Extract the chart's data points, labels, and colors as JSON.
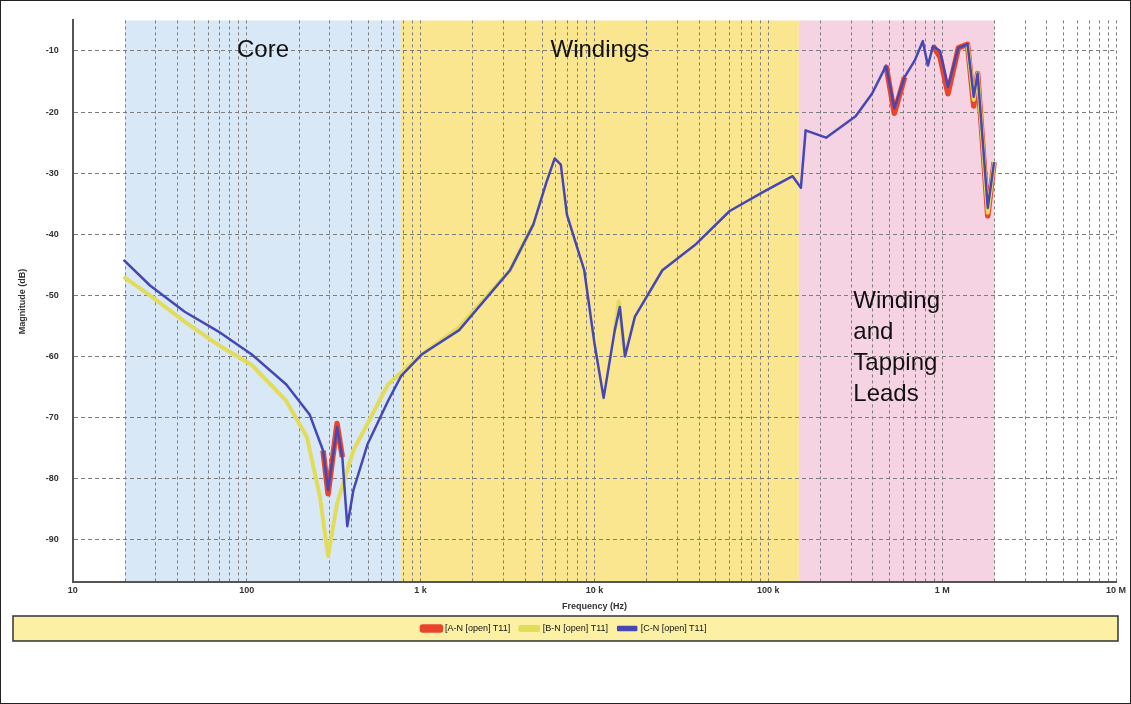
{
  "chart_data": {
    "type": "line",
    "xlabel": "Frequency (Hz)",
    "ylabel": "Magnitude (dB)",
    "log": "x",
    "grid": true,
    "legend": "bottom",
    "xlim": [
      10,
      10000000
    ],
    "ylim": [
      -97,
      -5
    ],
    "xticks": [
      10,
      {
        "value": 20,
        "label": null
      },
      {
        "value": 30,
        "label": null
      },
      {
        "value": 40,
        "label": null
      },
      {
        "value": 50,
        "label": null
      },
      {
        "value": 60,
        "label": null
      },
      {
        "value": 70,
        "label": null
      },
      {
        "value": 80,
        "label": null
      },
      {
        "value": 90,
        "label": null
      },
      100,
      {
        "value": 200,
        "label": null
      },
      {
        "value": 300,
        "label": null
      },
      {
        "value": 400,
        "label": null
      },
      {
        "value": 500,
        "label": null
      },
      {
        "value": 600,
        "label": null
      },
      {
        "value": 700,
        "label": null
      },
      {
        "value": 800,
        "label": null
      },
      {
        "value": 900,
        "label": null
      },
      {
        "value": 1000,
        "label": "1 k"
      },
      {
        "value": 2000,
        "label": null
      },
      {
        "value": 3000,
        "label": null
      },
      {
        "value": 4000,
        "label": null
      },
      {
        "value": 5000,
        "label": null
      },
      {
        "value": 6000,
        "label": null
      },
      {
        "value": 7000,
        "label": null
      },
      {
        "value": 8000,
        "label": null
      },
      {
        "value": 9000,
        "label": null
      },
      {
        "value": 10000,
        "label": "10 k"
      },
      {
        "value": 20000,
        "label": null
      },
      {
        "value": 30000,
        "label": null
      },
      {
        "value": 40000,
        "label": null
      },
      {
        "value": 50000,
        "label": null
      },
      {
        "value": 60000,
        "label": null
      },
      {
        "value": 70000,
        "label": null
      },
      {
        "value": 80000,
        "label": null
      },
      {
        "value": 90000,
        "label": null
      },
      {
        "value": 100000,
        "label": "100 k"
      },
      {
        "value": 200000,
        "label": null
      },
      {
        "value": 300000,
        "label": null
      },
      {
        "value": 400000,
        "label": null
      },
      {
        "value": 500000,
        "label": null
      },
      {
        "value": 600000,
        "label": null
      },
      {
        "value": 700000,
        "label": null
      },
      {
        "value": 800000,
        "label": null
      },
      {
        "value": 900000,
        "label": null
      },
      {
        "value": 1000000,
        "label": "1 M"
      },
      {
        "value": 2000000,
        "label": null
      },
      {
        "value": 3000000,
        "label": null
      },
      {
        "value": 4000000,
        "label": null
      },
      {
        "value": 5000000,
        "label": null
      },
      {
        "value": 6000000,
        "label": null
      },
      {
        "value": 7000000,
        "label": null
      },
      {
        "value": 8000000,
        "label": null
      },
      {
        "value": 9000000,
        "label": null
      },
      {
        "value": 10000000,
        "label": "10 M"
      }
    ],
    "yticks": [
      -90,
      -80,
      -70,
      -60,
      -50,
      -40,
      -30,
      -20,
      -10
    ],
    "bands": [
      {
        "axis": "x",
        "from": 20,
        "to": 770,
        "label": "Core",
        "color": "#d8e8f6"
      },
      {
        "axis": "x",
        "from": 770,
        "to": 150000,
        "label": "Windings",
        "color": "#fbe690"
      },
      {
        "axis": "x",
        "from": 150000,
        "to": 2000000,
        "label": "Winding and Tapping Leads",
        "color": "#f6d3e2"
      }
    ],
    "x": [
      19.6,
      27.8,
      44,
      68.5,
      107,
      169,
      230,
      275,
      294,
      331,
      355,
      379,
      411,
      497,
      650,
      774,
      1014,
      1668,
      3270,
      4456,
      5312,
      5912,
      6410,
      6950,
      8740,
      10000,
      11300,
      13100,
      14000,
      15000,
      17100,
      24600,
      38500,
      60000,
      94800,
      138000,
      154000,
      164000,
      215000,
      318000,
      395000,
      476000,
      531000,
      608000,
      695000,
      774000,
      828000,
      886000,
      973000,
      1080000,
      1240000,
      1400000,
      1520000,
      1600000,
      1830000,
      1990000
    ],
    "series": [
      {
        "name": "[A-N [open] T11]",
        "color": "#e8452c",
        "values": [
          null,
          null,
          null,
          null,
          null,
          null,
          null,
          -75.4,
          -82.5,
          -71.0,
          -76.5,
          null,
          null,
          null,
          null,
          null,
          null,
          null,
          null,
          null,
          null,
          null,
          null,
          null,
          null,
          null,
          null,
          null,
          null,
          null,
          null,
          null,
          null,
          null,
          null,
          null,
          null,
          null,
          null,
          null,
          null,
          -12.4,
          -20.2,
          -14.3,
          null,
          null,
          null,
          -9.2,
          -11.0,
          -17.0,
          -9.5,
          -8.9,
          -19.0,
          -13.7,
          -37.0,
          -28.2
        ]
      },
      {
        "name": "[B-N [open] T11]",
        "color": "#e2dc5a",
        "x": [
          19.6,
          27.8,
          44,
          68.5,
          107,
          169,
          222,
          264,
          294,
          331,
          411,
          650,
          1014,
          1668,
          3270,
          4456,
          5312,
          5912,
          6410,
          6950,
          8740,
          10000,
          11300,
          13100,
          13800,
          15000,
          17100,
          24600,
          38500,
          60000,
          94800,
          138000,
          154000,
          164000,
          215000,
          318000,
          395000,
          476000,
          531000,
          608000,
          695000,
          774000,
          828000,
          886000,
          973000,
          1080000,
          1240000,
          1400000,
          1520000,
          1600000,
          1830000,
          1990000
        ],
        "values": [
          -47.0,
          -50.0,
          -54.3,
          -58.1,
          -61.4,
          -67.3,
          -73.2,
          -83.0,
          -92.7,
          -84.1,
          -75.4,
          -64.6,
          -59.7,
          -55.2,
          -45.9,
          -38.4,
          null,
          null,
          null,
          null,
          null,
          null,
          null,
          -55.7,
          -51.0,
          -60.0,
          null,
          null,
          null,
          null,
          null,
          null,
          null,
          null,
          null,
          null,
          null,
          null,
          null,
          null,
          null,
          null,
          null,
          null,
          null,
          null,
          null,
          -8.9,
          -18.0,
          -13.7,
          -36.5,
          -28.2
        ]
      },
      {
        "name": "[C-N [open] T11]",
        "color": "#4646b4",
        "values": [
          -44.2,
          -48.4,
          -52.7,
          -55.9,
          -59.7,
          -64.6,
          -69.5,
          -75.4,
          -81.9,
          -71.6,
          -76.5,
          -87.8,
          -81.9,
          -74.3,
          -67.3,
          -63.2,
          -59.7,
          -55.7,
          -45.9,
          -38.4,
          -31.4,
          -27.6,
          -28.6,
          -36.8,
          -45.9,
          -57.8,
          -66.8,
          -55.7,
          -51.9,
          -60.0,
          -53.5,
          -45.9,
          -41.6,
          -36.2,
          -33.0,
          -30.5,
          -32.4,
          -23.0,
          -24.2,
          -20.7,
          -17.0,
          -12.4,
          -19.4,
          -14.3,
          -11.6,
          -8.4,
          -12.4,
          -9.2,
          -10.0,
          -15.9,
          -9.5,
          -8.9,
          -17.5,
          -13.7,
          -35.7,
          -28.2
        ]
      }
    ]
  }
}
